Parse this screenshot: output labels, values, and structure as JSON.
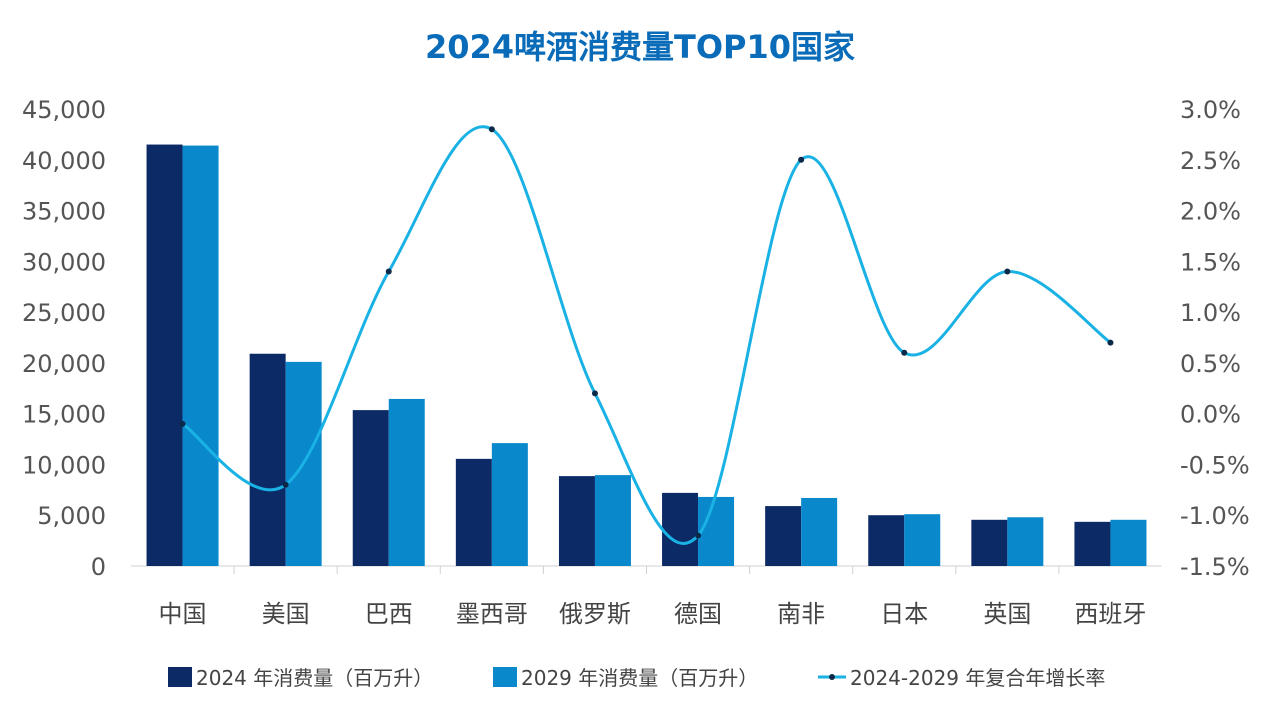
{
  "chart_data": {
    "type": "bar",
    "title": "2024啤酒消费量TOP10国家",
    "categories": [
      "中国",
      "美国",
      "巴西",
      "墨西哥",
      "俄罗斯",
      "德国",
      "南非",
      "日本",
      "英国",
      "西班牙"
    ],
    "series": [
      {
        "name": "2024 年消费量（百万升）",
        "type": "bar",
        "axis": "left",
        "color": "#0b2a66",
        "values": [
          41500,
          20900,
          15350,
          10550,
          8850,
          7200,
          5900,
          5000,
          4550,
          4350
        ]
      },
      {
        "name": "2029 年消费量（百万升）",
        "type": "bar",
        "axis": "left",
        "color": "#0a88cc",
        "values": [
          41400,
          20100,
          16450,
          12100,
          8950,
          6800,
          6700,
          5100,
          4800,
          4550
        ]
      },
      {
        "name": "2024-2029 年复合年增长率",
        "type": "line",
        "axis": "right",
        "color": "#1ab2e4",
        "values": [
          -0.1,
          -0.7,
          1.4,
          2.8,
          0.2,
          -1.2,
          2.5,
          0.6,
          1.4,
          0.7
        ]
      }
    ],
    "ylim_left": [
      0,
      45000
    ],
    "yticks_left": [
      "0",
      "5,000",
      "10,000",
      "15,000",
      "20,000",
      "25,000",
      "30,000",
      "35,000",
      "40,000",
      "45,000"
    ],
    "ylim_right": [
      -1.5,
      3.0
    ],
    "yticks_right": [
      "-1.5%",
      "-1.0%",
      "-0.5%",
      "0.0%",
      "0.5%",
      "1.0%",
      "1.5%",
      "2.0%",
      "2.5%",
      "3.0%"
    ],
    "grid": false,
    "legend": "bottom",
    "title_color": "#0a6cb8"
  }
}
